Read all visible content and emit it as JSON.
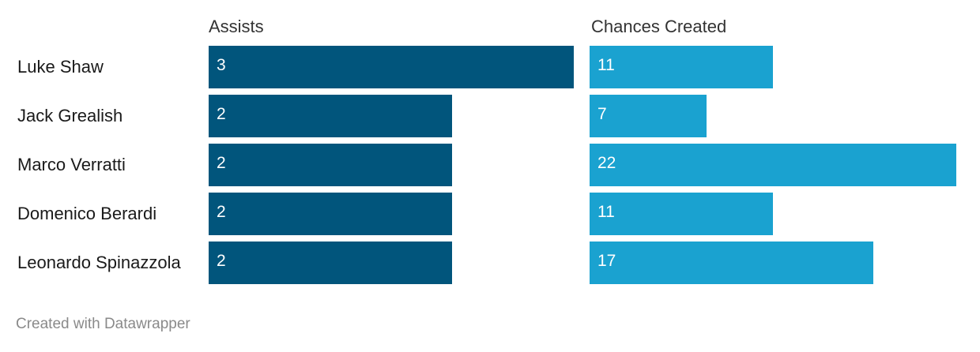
{
  "chart_data": {
    "type": "bar",
    "categories": [
      "Luke Shaw",
      "Jack Grealish",
      "Marco Verratti",
      "Domenico Berardi",
      "Leonardo Spinazzola"
    ],
    "series": [
      {
        "name": "Assists",
        "values": [
          3,
          2,
          2,
          2,
          2
        ],
        "color": "#01557c"
      },
      {
        "name": "Chances Created",
        "values": [
          11,
          7,
          22,
          11,
          17
        ],
        "color": "#1aa2d0"
      }
    ],
    "orientation": "horizontal",
    "layout": "small-multiples"
  },
  "footer": {
    "credit": "Created with Datawrapper"
  }
}
